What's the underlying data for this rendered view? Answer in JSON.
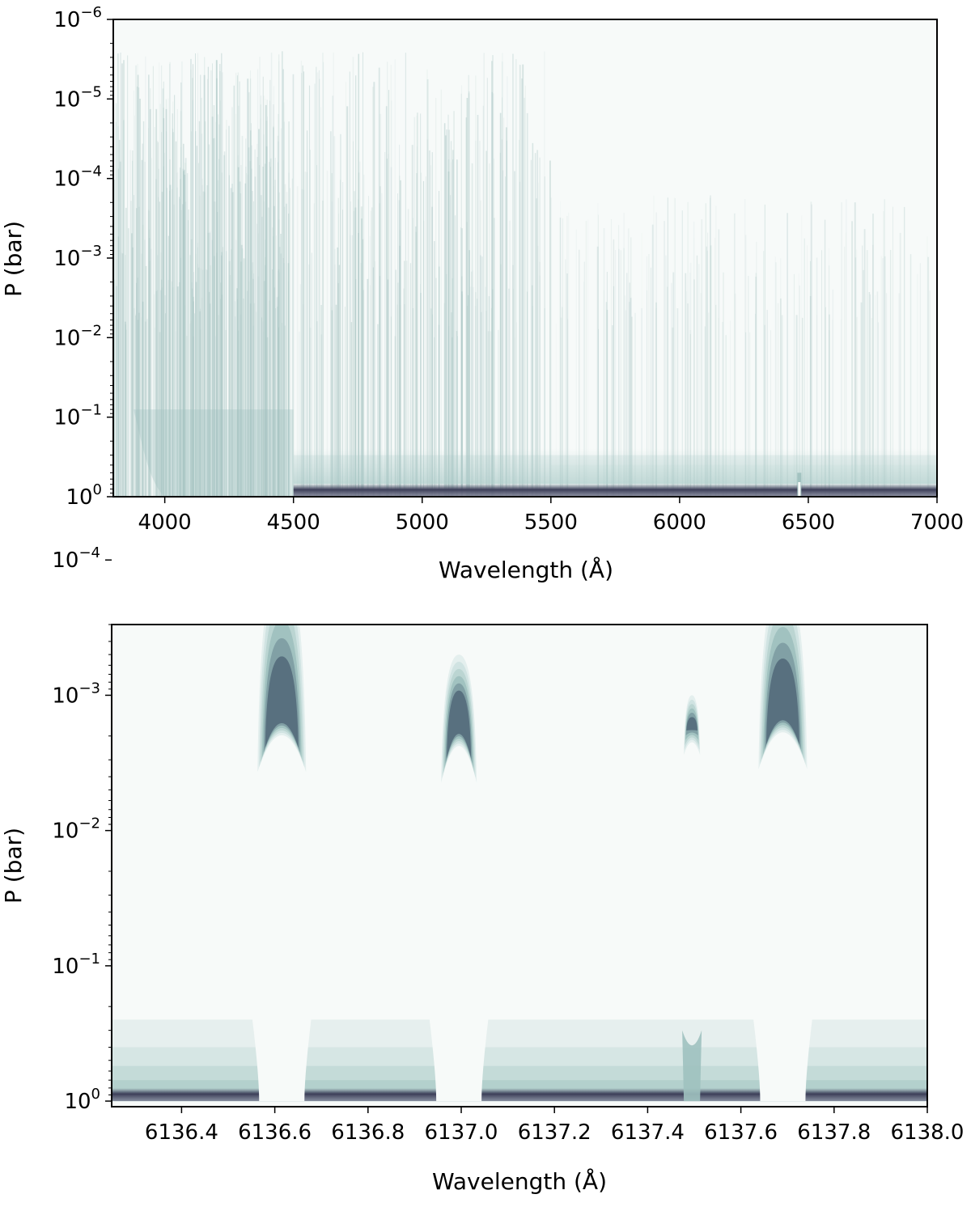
{
  "chart_data": [
    {
      "type": "heatmap",
      "xlabel": "Wavelength (Å)",
      "ylabel": "P (bar)",
      "xlim": [
        3800,
        7000
      ],
      "ylim": [
        1,
        1e-06
      ],
      "y_scale": "log",
      "x_ticks": [
        "4000",
        "4500",
        "5000",
        "5500",
        "6000",
        "6500",
        "7000"
      ],
      "x_tick_values": [
        4000,
        4500,
        5000,
        5500,
        6000,
        6500,
        7000
      ],
      "y_ticks": [
        {
          "base": "10",
          "exp": "0"
        },
        {
          "base": "10",
          "exp": "−1"
        },
        {
          "base": "10",
          "exp": "−2"
        },
        {
          "base": "10",
          "exp": "−3"
        },
        {
          "base": "10",
          "exp": "−4"
        },
        {
          "base": "10",
          "exp": "−5"
        },
        {
          "base": "10",
          "exp": "−6"
        }
      ],
      "y_tick_values": [
        1,
        0.1,
        0.01,
        0.001,
        0.0001,
        1e-05,
        1e-06
      ],
      "colormap": [
        "#f7faf9",
        "#d9e8e6",
        "#b5d2cf",
        "#8fb3b2",
        "#5f7a85",
        "#3c3e58"
      ],
      "features": {
        "upper_band_pressure": 0.001,
        "strong_line_region": [
          3800,
          5500
        ],
        "isolated_line": 6465
      }
    },
    {
      "type": "heatmap",
      "xlabel": "Wavelength (Å)",
      "ylabel": "P (bar)",
      "xlim": [
        6136.25,
        6138.0
      ],
      "ylim": [
        1.1,
        0.0003
      ],
      "y_scale": "log",
      "x_ticks": [
        "6136.4",
        "6136.6",
        "6136.8",
        "6137.0",
        "6137.2",
        "6137.4",
        "6137.6",
        "6137.8",
        "6138.0"
      ],
      "x_tick_values": [
        6136.4,
        6136.6,
        6136.8,
        6137.0,
        6137.2,
        6137.4,
        6137.6,
        6137.8,
        6138.0
      ],
      "y_ticks": [
        {
          "base": "10",
          "exp": "0"
        },
        {
          "base": "10",
          "exp": "−1"
        },
        {
          "base": "10",
          "exp": "−2"
        },
        {
          "base": "10",
          "exp": "−3"
        },
        {
          "base": "10",
          "exp": "−4"
        }
      ],
      "y_tick_values": [
        1,
        0.1,
        0.01,
        0.001,
        0.0001
      ],
      "colormap": [
        "#f7faf9",
        "#d9e8e6",
        "#b5d2cf",
        "#8fb3b2",
        "#5f7a85",
        "#3c3e58"
      ],
      "lines": [
        {
          "center": 6136.615,
          "peak_pressure": 0.001,
          "top_pressure": 0.00011
        },
        {
          "center": 6136.995,
          "peak_pressure": 0.0012,
          "top_pressure": 0.0005
        },
        {
          "center": 6137.495,
          "peak_pressure": 0.0017,
          "top_pressure": 0.001
        },
        {
          "center": 6137.69,
          "peak_pressure": 0.00095,
          "top_pressure": 0.00014
        }
      ]
    }
  ]
}
